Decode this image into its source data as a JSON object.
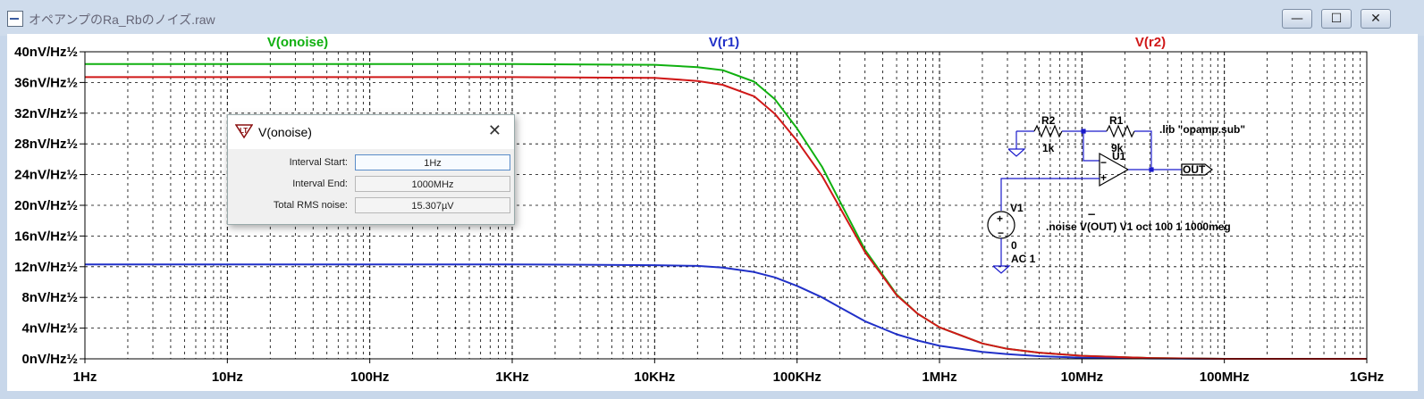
{
  "window": {
    "title": "オペアンプのRa_Rbのノイズ.raw",
    "buttons": {
      "minimize": "—",
      "maximize": "☐",
      "close": "✕"
    }
  },
  "chart_data": {
    "type": "line",
    "x_scale": "log",
    "xlim": [
      1,
      1000000000
    ],
    "ylim": [
      0,
      40
    ],
    "x_ticks": [
      {
        "value": 1,
        "label": "1Hz"
      },
      {
        "value": 10,
        "label": "10Hz"
      },
      {
        "value": 100,
        "label": "100Hz"
      },
      {
        "value": 1000,
        "label": "1KHz"
      },
      {
        "value": 10000,
        "label": "10KHz"
      },
      {
        "value": 100000,
        "label": "100KHz"
      },
      {
        "value": 1000000,
        "label": "1MHz"
      },
      {
        "value": 10000000,
        "label": "10MHz"
      },
      {
        "value": 100000000,
        "label": "100MHz"
      },
      {
        "value": 1000000000,
        "label": "1GHz"
      }
    ],
    "y_ticks": [
      {
        "value": 40,
        "label": "40nV/Hz½"
      },
      {
        "value": 36,
        "label": "36nV/Hz½"
      },
      {
        "value": 32,
        "label": "32nV/Hz½"
      },
      {
        "value": 28,
        "label": "28nV/Hz½"
      },
      {
        "value": 24,
        "label": "24nV/Hz½"
      },
      {
        "value": 20,
        "label": "20nV/Hz½"
      },
      {
        "value": 16,
        "label": "16nV/Hz½"
      },
      {
        "value": 12,
        "label": "12nV/Hz½"
      },
      {
        "value": 8,
        "label": "8nV/Hz½"
      },
      {
        "value": 4,
        "label": "4nV/Hz½"
      },
      {
        "value": 0,
        "label": "0nV/Hz½"
      }
    ],
    "grid": "dashed",
    "series": [
      {
        "name": "V(onoise)",
        "color": "#10b010",
        "x": [
          1,
          1000,
          10000,
          20000,
          30000,
          50000,
          70000,
          100000,
          150000,
          200000,
          300000,
          500000,
          700000,
          1000000,
          2000000,
          3000000,
          5000000,
          10000000,
          30000000,
          100000000,
          1000000000
        ],
        "y": [
          38.4,
          38.4,
          38.3,
          38.0,
          37.6,
          36.1,
          33.8,
          30.0,
          25.0,
          20.5,
          14.2,
          8.4,
          5.9,
          4.1,
          2.0,
          1.3,
          0.8,
          0.4,
          0.1,
          0.0,
          0.0
        ]
      },
      {
        "name": "V(r1)",
        "color": "#2030c8",
        "x": [
          1,
          1000,
          10000,
          20000,
          30000,
          50000,
          70000,
          100000,
          150000,
          200000,
          300000,
          500000,
          700000,
          1000000,
          2000000,
          3000000,
          5000000,
          10000000,
          30000000,
          100000000,
          1000000000
        ],
        "y": [
          12.3,
          12.3,
          12.2,
          12.1,
          11.9,
          11.3,
          10.6,
          9.5,
          8.0,
          6.7,
          4.9,
          3.2,
          2.4,
          1.7,
          0.9,
          0.6,
          0.35,
          0.15,
          0.05,
          0.0,
          0.0
        ]
      },
      {
        "name": "V(r2)",
        "color": "#d01818",
        "x": [
          1,
          1000,
          10000,
          20000,
          30000,
          50000,
          70000,
          100000,
          150000,
          200000,
          300000,
          500000,
          700000,
          1000000,
          2000000,
          3000000,
          5000000,
          10000000,
          30000000,
          100000000,
          1000000000
        ],
        "y": [
          36.7,
          36.7,
          36.6,
          36.2,
          35.7,
          34.2,
          31.9,
          28.4,
          23.8,
          19.7,
          13.9,
          8.3,
          5.9,
          4.1,
          2.0,
          1.3,
          0.8,
          0.4,
          0.1,
          0.0,
          0.0
        ]
      }
    ]
  },
  "dialog": {
    "title": "V(onoise)",
    "rows": [
      {
        "label": "Interval Start:",
        "value": "1Hz"
      },
      {
        "label": "Interval End:",
        "value": "1000MHz"
      },
      {
        "label": "Total RMS noise:",
        "value": "15.307µV"
      }
    ]
  },
  "schematic": {
    "r2_name": "R2",
    "r2_value": "1k",
    "r1_name": "R1",
    "r1_value": "9k",
    "u1_name": "U1",
    "lib_directive": ".lib \"opamp.sub\"",
    "out_label": "OUT",
    "v1_name": "V1",
    "v1_dc": "0",
    "v1_ac": "AC 1",
    "noise_directive": ".noise V(OUT) V1 oct 100 1 1000meg"
  }
}
